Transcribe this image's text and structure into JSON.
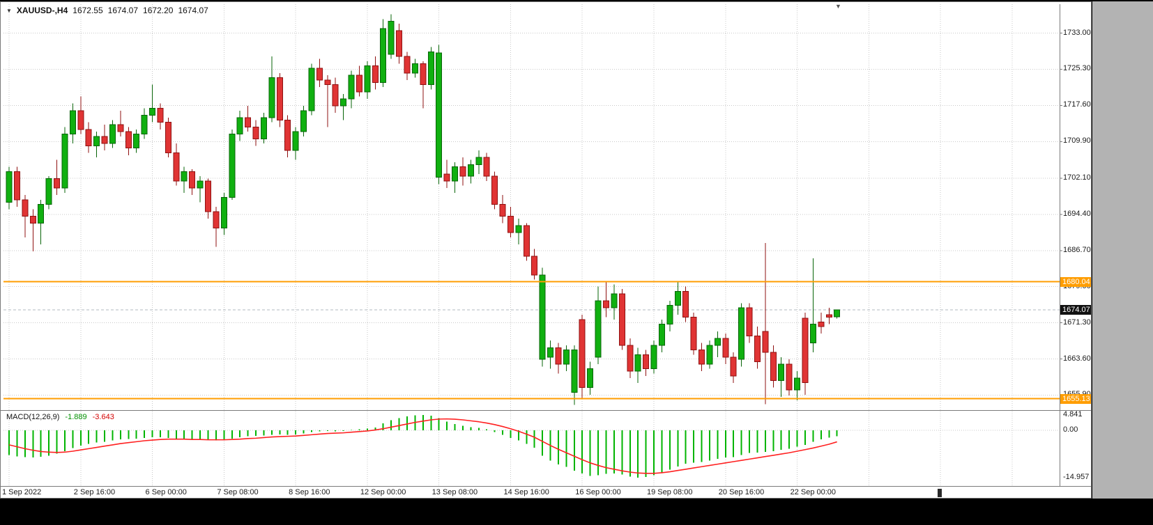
{
  "window": {
    "shift_marker_icon": "▼",
    "header": {
      "dropdown_icon": "▼",
      "symbol_timeframe": "XAUUSD-,H4",
      "open": "1672.55",
      "high": "1674.07",
      "low": "1672.20",
      "close": "1674.07"
    },
    "macd_header": {
      "title": "MACD(12,26,9)",
      "main_value": "-1.889",
      "signal_value": "-3.643"
    }
  },
  "colors": {
    "bull_fill": "#10b010",
    "bull_stroke": "#076407",
    "bear_fill": "#e03434",
    "bear_stroke": "#8f1010",
    "grid": "#c8c8c8",
    "level": "#ff9d00",
    "macd_hist": "#00b400",
    "macd_signal": "#ff2020",
    "badge_current_bg": "#111111",
    "badge_level_bg": "#ff9d00",
    "badge_text": "#ffffff",
    "axis_text": "#1a1a1a",
    "separator": "#7a7a7a",
    "current_price_line": "#b0b8c0"
  },
  "chart_data": {
    "type": "candlestick",
    "symbol": "XAUUSD-",
    "timeframe": "H4",
    "title": "XAUUSD-,H4 1672.55 1674.07 1672.20 1674.07",
    "price_axis_ticks": [
      {
        "text": "1733.00",
        "value": 1733.0
      },
      {
        "text": "1725.30",
        "value": 1725.3
      },
      {
        "text": "1717.60",
        "value": 1717.6
      },
      {
        "text": "1709.90",
        "value": 1709.9
      },
      {
        "text": "1702.10",
        "value": 1702.1
      },
      {
        "text": "1694.40",
        "value": 1694.4
      },
      {
        "text": "1686.70",
        "value": 1686.7
      },
      {
        "text": "1679.00",
        "value": 1679.0
      },
      {
        "text": "1671.30",
        "value": 1671.3
      },
      {
        "text": "1663.60",
        "value": 1663.6
      },
      {
        "text": "1655.90",
        "value": 1655.9
      }
    ],
    "time_axis_ticks": [
      {
        "text": "1 Sep 2022",
        "index": 0
      },
      {
        "text": "2 Sep 16:00",
        "index": 9
      },
      {
        "text": "6 Sep 00:00",
        "index": 18
      },
      {
        "text": "7 Sep 08:00",
        "index": 27
      },
      {
        "text": "8 Sep 16:00",
        "index": 36
      },
      {
        "text": "12 Sep 00:00",
        "index": 45
      },
      {
        "text": "13 Sep 08:00",
        "index": 54
      },
      {
        "text": "14 Sep 16:00",
        "index": 63
      },
      {
        "text": "16 Sep 00:00",
        "index": 72
      },
      {
        "text": "19 Sep 08:00",
        "index": 81
      },
      {
        "text": "20 Sep 16:00",
        "index": 90
      },
      {
        "text": "22 Sep 00:00",
        "index": 99
      }
    ],
    "macd_axis_ticks": [
      {
        "text": "4.841",
        "value": 4.841
      },
      {
        "text": "0.00",
        "value": 0.0
      },
      {
        "text": "-14.957",
        "value": -14.957
      }
    ],
    "levels": [
      {
        "text": "1680.04",
        "value": 1680.04
      },
      {
        "text": "1655.13",
        "value": 1655.13
      }
    ],
    "current_price": {
      "text": "1674.07",
      "value": 1674.07
    },
    "candles": [
      [
        1697.0,
        1704.5,
        1695.5,
        1703.5
      ],
      [
        1703.5,
        1704.5,
        1696.0,
        1697.5
      ],
      [
        1697.5,
        1698.5,
        1689.5,
        1694.0
      ],
      [
        1694.0,
        1695.5,
        1686.5,
        1692.5
      ],
      [
        1692.5,
        1697.5,
        1688.0,
        1696.5
      ],
      [
        1696.5,
        1702.5,
        1695.5,
        1702.0
      ],
      [
        1702.0,
        1706.0,
        1698.5,
        1700.0
      ],
      [
        1700.0,
        1713.0,
        1699.0,
        1711.5
      ],
      [
        1711.5,
        1718.0,
        1709.5,
        1716.5
      ],
      [
        1716.5,
        1719.5,
        1711.5,
        1712.5
      ],
      [
        1712.5,
        1714.0,
        1707.5,
        1709.0
      ],
      [
        1709.0,
        1712.0,
        1706.5,
        1711.0
      ],
      [
        1711.0,
        1713.5,
        1708.0,
        1709.5
      ],
      [
        1709.5,
        1714.5,
        1708.5,
        1713.5
      ],
      [
        1713.5,
        1716.5,
        1711.0,
        1712.0
      ],
      [
        1712.0,
        1713.0,
        1707.0,
        1708.5
      ],
      [
        1708.5,
        1712.5,
        1707.5,
        1711.5
      ],
      [
        1711.5,
        1717.0,
        1710.5,
        1715.5
      ],
      [
        1715.5,
        1722.0,
        1714.0,
        1717.0
      ],
      [
        1717.0,
        1718.0,
        1712.5,
        1714.0
      ],
      [
        1714.0,
        1715.0,
        1706.5,
        1707.5
      ],
      [
        1707.5,
        1709.5,
        1700.5,
        1701.5
      ],
      [
        1701.5,
        1704.5,
        1699.0,
        1703.5
      ],
      [
        1703.5,
        1704.0,
        1698.5,
        1700.0
      ],
      [
        1700.0,
        1702.5,
        1697.0,
        1701.5
      ],
      [
        1701.5,
        1702.0,
        1693.5,
        1695.0
      ],
      [
        1695.0,
        1696.0,
        1687.5,
        1691.5
      ],
      [
        1691.5,
        1699.0,
        1690.0,
        1698.0
      ],
      [
        1698.0,
        1712.5,
        1697.5,
        1711.5
      ],
      [
        1711.5,
        1716.5,
        1710.0,
        1715.0
      ],
      [
        1715.0,
        1717.5,
        1712.0,
        1713.0
      ],
      [
        1713.0,
        1714.5,
        1709.0,
        1710.5
      ],
      [
        1710.5,
        1716.0,
        1709.5,
        1715.0
      ],
      [
        1715.0,
        1728.0,
        1714.0,
        1723.5
      ],
      [
        1723.5,
        1724.5,
        1713.0,
        1714.5
      ],
      [
        1714.5,
        1715.5,
        1706.5,
        1708.0
      ],
      [
        1708.0,
        1713.0,
        1706.0,
        1712.0
      ],
      [
        1712.0,
        1717.5,
        1711.0,
        1716.5
      ],
      [
        1716.5,
        1726.5,
        1715.5,
        1725.5
      ],
      [
        1725.5,
        1727.5,
        1721.5,
        1723.0
      ],
      [
        1723.0,
        1724.0,
        1713.0,
        1722.0
      ],
      [
        1722.0,
        1723.5,
        1716.0,
        1717.5
      ],
      [
        1717.5,
        1720.0,
        1714.5,
        1719.0
      ],
      [
        1719.0,
        1725.0,
        1717.0,
        1724.0
      ],
      [
        1724.0,
        1726.0,
        1719.5,
        1720.5
      ],
      [
        1720.5,
        1727.0,
        1719.0,
        1726.0
      ],
      [
        1726.0,
        1728.0,
        1721.0,
        1722.5
      ],
      [
        1722.5,
        1736.0,
        1721.5,
        1734.0
      ],
      [
        1728.5,
        1737.0,
        1727.5,
        1735.5
      ],
      [
        1733.5,
        1735.0,
        1726.5,
        1728.0
      ],
      [
        1728.0,
        1729.0,
        1723.0,
        1724.5
      ],
      [
        1724.5,
        1727.5,
        1723.5,
        1726.5
      ],
      [
        1726.5,
        1727.0,
        1717.0,
        1722.0
      ],
      [
        1722.0,
        1730.0,
        1721.0,
        1729.0
      ],
      [
        1702.3,
        1730.5,
        1700.8,
        1728.8
      ],
      [
        1703.0,
        1706.0,
        1700.0,
        1701.5
      ],
      [
        1701.5,
        1705.5,
        1699.0,
        1704.5
      ],
      [
        1704.5,
        1706.5,
        1700.5,
        1702.5
      ],
      [
        1702.5,
        1706.0,
        1701.0,
        1705.0
      ],
      [
        1705.0,
        1708.0,
        1703.0,
        1706.5
      ],
      [
        1706.5,
        1707.5,
        1701.5,
        1702.5
      ],
      [
        1702.5,
        1703.5,
        1695.5,
        1696.5
      ],
      [
        1696.5,
        1698.5,
        1692.5,
        1694.0
      ],
      [
        1694.0,
        1696.0,
        1689.5,
        1690.5
      ],
      [
        1690.5,
        1693.5,
        1688.0,
        1692.0
      ],
      [
        1692.0,
        1692.5,
        1684.5,
        1685.5
      ],
      [
        1685.5,
        1687.0,
        1680.5,
        1681.5
      ],
      [
        1663.5,
        1683.0,
        1662.0,
        1681.5
      ],
      [
        1664.0,
        1667.5,
        1661.5,
        1666.0
      ],
      [
        1666.0,
        1667.0,
        1660.5,
        1662.5
      ],
      [
        1662.5,
        1666.5,
        1661.0,
        1665.5
      ],
      [
        1656.5,
        1666.5,
        1653.8,
        1665.5
      ],
      [
        1672.0,
        1673.0,
        1655.0,
        1657.5
      ],
      [
        1657.5,
        1663.0,
        1656.0,
        1661.5
      ],
      [
        1664.0,
        1679.0,
        1662.5,
        1676.0
      ],
      [
        1676.0,
        1680.0,
        1672.5,
        1674.5
      ],
      [
        1674.5,
        1679.5,
        1672.0,
        1677.5
      ],
      [
        1677.5,
        1678.5,
        1665.5,
        1666.5
      ],
      [
        1666.5,
        1668.0,
        1659.5,
        1661.0
      ],
      [
        1661.0,
        1666.0,
        1658.5,
        1664.5
      ],
      [
        1664.5,
        1665.5,
        1660.0,
        1661.5
      ],
      [
        1661.5,
        1667.5,
        1660.5,
        1666.5
      ],
      [
        1666.5,
        1672.0,
        1665.0,
        1671.0
      ],
      [
        1671.0,
        1676.0,
        1669.5,
        1675.0
      ],
      [
        1675.0,
        1680.0,
        1673.0,
        1678.0
      ],
      [
        1678.0,
        1679.0,
        1671.5,
        1672.5
      ],
      [
        1672.5,
        1673.5,
        1664.5,
        1665.5
      ],
      [
        1665.5,
        1667.0,
        1661.0,
        1662.5
      ],
      [
        1662.5,
        1667.5,
        1661.5,
        1666.5
      ],
      [
        1666.5,
        1669.5,
        1664.0,
        1668.0
      ],
      [
        1668.0,
        1669.0,
        1662.5,
        1664.0
      ],
      [
        1664.0,
        1665.0,
        1658.5,
        1660.0
      ],
      [
        1663.5,
        1675.5,
        1662.0,
        1674.5
      ],
      [
        1674.5,
        1675.5,
        1667.0,
        1668.5
      ],
      [
        1668.5,
        1670.5,
        1661.5,
        1663.0
      ],
      [
        1669.5,
        1688.3,
        1654.0,
        1665.0
      ],
      [
        1665.0,
        1666.5,
        1657.5,
        1659.0
      ],
      [
        1659.0,
        1664.0,
        1655.5,
        1662.5
      ],
      [
        1662.5,
        1663.5,
        1655.8,
        1657.0
      ],
      [
        1657.0,
        1661.0,
        1654.8,
        1659.5
      ],
      [
        1672.3,
        1673.5,
        1656.0,
        1658.6
      ],
      [
        1667.0,
        1685.0,
        1665.0,
        1671.0
      ],
      [
        1671.5,
        1673.5,
        1669.0,
        1670.5
      ],
      [
        1673.0,
        1674.5,
        1671.0,
        1672.5
      ],
      [
        1672.55,
        1674.07,
        1672.2,
        1674.07
      ]
    ],
    "macd": {
      "params": "12,26,9",
      "histogram": [
        -7.8,
        -8.2,
        -8.5,
        -8.6,
        -8.4,
        -8.0,
        -7.4,
        -6.6,
        -5.6,
        -4.8,
        -4.3,
        -3.9,
        -3.6,
        -3.2,
        -2.9,
        -2.8,
        -2.6,
        -2.4,
        -2.2,
        -2.2,
        -2.4,
        -2.7,
        -2.9,
        -3.0,
        -3.0,
        -3.1,
        -3.2,
        -3.0,
        -2.6,
        -2.2,
        -1.9,
        -1.8,
        -1.7,
        -1.4,
        -1.3,
        -1.4,
        -1.3,
        -1.0,
        -0.6,
        -0.3,
        -0.2,
        -0.3,
        -0.2,
        0.1,
        0.3,
        0.6,
        0.9,
        2.2,
        3.2,
        3.9,
        4.4,
        4.7,
        4.841,
        4.6,
        3.9,
        2.8,
        2.0,
        1.4,
        1.0,
        0.8,
        0.3,
        -0.5,
        -1.4,
        -2.4,
        -3.2,
        -4.3,
        -5.5,
        -8.0,
        -9.6,
        -10.8,
        -11.6,
        -12.8,
        -13.6,
        -14.4,
        -14.2,
        -13.8,
        -13.6,
        -14.0,
        -14.6,
        -14.957,
        -14.7,
        -14.2,
        -13.4,
        -12.4,
        -11.4,
        -10.6,
        -10.2,
        -10.0,
        -9.6,
        -9.0,
        -8.6,
        -8.5,
        -7.8,
        -7.2,
        -7.0,
        -6.8,
        -6.6,
        -6.2,
        -5.8,
        -5.2,
        -4.6,
        -3.6,
        -2.9,
        -2.3,
        -1.889
      ],
      "signal": [
        -4.6,
        -5.2,
        -5.8,
        -6.3,
        -6.7,
        -6.9,
        -7.0,
        -6.9,
        -6.6,
        -6.2,
        -5.8,
        -5.4,
        -5.0,
        -4.6,
        -4.2,
        -3.9,
        -3.6,
        -3.3,
        -3.1,
        -2.9,
        -2.8,
        -2.8,
        -2.8,
        -2.9,
        -2.9,
        -3.0,
        -3.0,
        -3.0,
        -2.9,
        -2.8,
        -2.6,
        -2.5,
        -2.3,
        -2.1,
        -2.0,
        -1.9,
        -1.8,
        -1.6,
        -1.4,
        -1.2,
        -1.0,
        -0.9,
        -0.8,
        -0.6,
        -0.4,
        -0.2,
        0.1,
        0.5,
        1.0,
        1.5,
        2.0,
        2.5,
        2.9,
        3.3,
        3.55,
        3.6,
        3.5,
        3.3,
        3.0,
        2.7,
        2.3,
        1.8,
        1.2,
        0.5,
        -0.3,
        -1.2,
        -2.2,
        -3.5,
        -4.8,
        -6.0,
        -7.1,
        -8.2,
        -9.3,
        -10.3,
        -11.1,
        -11.8,
        -12.3,
        -12.8,
        -13.2,
        -13.5,
        -13.6,
        -13.6,
        -13.4,
        -13.1,
        -12.7,
        -12.3,
        -11.9,
        -11.5,
        -11.1,
        -10.7,
        -10.3,
        -9.9,
        -9.5,
        -9.1,
        -8.7,
        -8.3,
        -7.9,
        -7.5,
        -7.1,
        -6.6,
        -6.1,
        -5.6,
        -5.0,
        -4.4,
        -3.643
      ]
    }
  }
}
